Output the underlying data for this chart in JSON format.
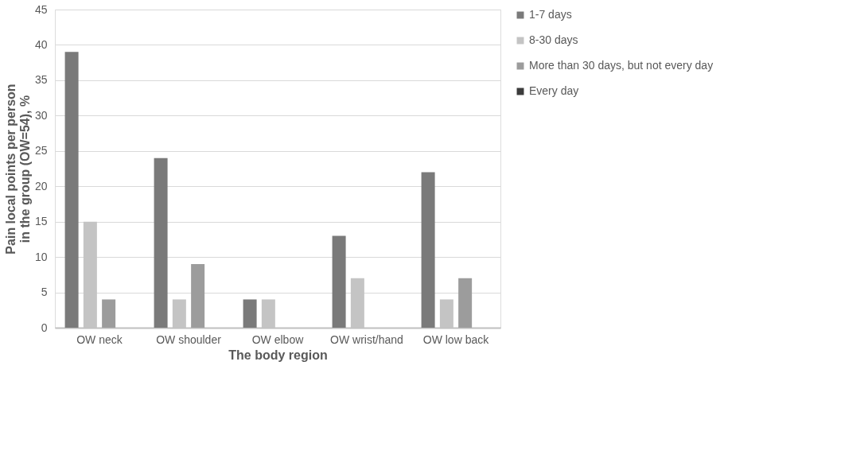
{
  "chart_data": {
    "type": "bar",
    "categories": [
      "OW neck",
      "OW shoulder",
      "OW elbow",
      "OW wrist/hand",
      "OW low back"
    ],
    "xlabel": "The body region",
    "ylabel": "Pain local points per person in the group (OW=54), %",
    "series": [
      {
        "name": "1-7 days",
        "color": "#7a7a7a",
        "values": [
          39,
          24,
          4,
          13,
          22
        ]
      },
      {
        "name": "8-30 days",
        "color": "#c4c4c4",
        "values": [
          15,
          4,
          4,
          7,
          4
        ]
      },
      {
        "name": "More than 30 days, but not every day",
        "color": "#9c9c9c",
        "values": [
          4,
          9,
          0,
          0,
          7
        ]
      },
      {
        "name": "Every day",
        "color": "#3c3c3c",
        "values": [
          0,
          0,
          0,
          0,
          0
        ]
      }
    ],
    "ylim": [
      0,
      45
    ],
    "yticks": [
      0,
      5,
      10,
      15,
      20,
      25,
      30,
      35,
      40,
      45
    ],
    "grid": "y",
    "legend": "right"
  }
}
